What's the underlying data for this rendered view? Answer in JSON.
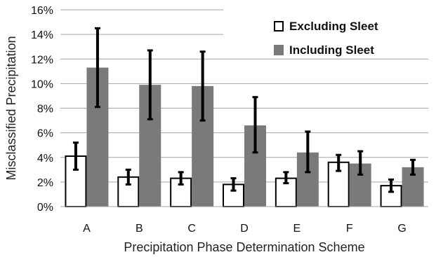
{
  "chart_data": {
    "type": "bar",
    "categories": [
      "A",
      "B",
      "C",
      "D",
      "E",
      "F",
      "G"
    ],
    "series": [
      {
        "name": "Excluding Sleet",
        "values": [
          4.1,
          2.4,
          2.3,
          1.8,
          2.3,
          3.6,
          1.7
        ],
        "error_low": [
          3.0,
          1.8,
          1.8,
          1.3,
          1.9,
          2.9,
          1.2
        ],
        "error_high": [
          5.2,
          3.0,
          2.8,
          2.3,
          2.8,
          4.2,
          2.2
        ],
        "fill": "#ffffff",
        "stroke": "#000000"
      },
      {
        "name": "Including Sleet",
        "values": [
          11.3,
          9.9,
          9.8,
          6.6,
          4.4,
          3.5,
          3.2
        ],
        "error_low": [
          8.1,
          7.1,
          7.0,
          4.4,
          2.8,
          2.6,
          2.6
        ],
        "error_high": [
          14.5,
          12.7,
          12.6,
          8.9,
          6.1,
          4.5,
          3.8
        ],
        "fill": "#7a7a7a",
        "stroke": "#7a7a7a"
      }
    ],
    "xlabel": "Precipitation Phase Determination Scheme",
    "ylabel": "Misclassified Precipitation",
    "ylim": [
      0,
      16
    ],
    "yticks": [
      "0%",
      "2%",
      "4%",
      "6%",
      "8%",
      "10%",
      "12%",
      "14%",
      "16%"
    ],
    "ytick_values": [
      0,
      2,
      4,
      6,
      8,
      10,
      12,
      14,
      16
    ],
    "grid": true,
    "legend_position": "top-right"
  }
}
